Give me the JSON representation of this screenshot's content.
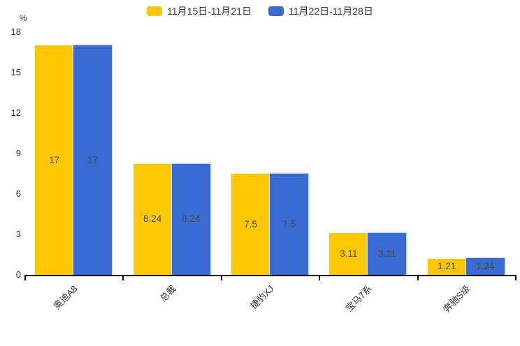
{
  "legend": {
    "items": [
      {
        "label": "11月15日-11月21日"
      },
      {
        "label": "11月22日-11月28日"
      }
    ]
  },
  "y_axis": {
    "unit": "%",
    "ticks": [
      "0",
      "3",
      "6",
      "9",
      "12",
      "15",
      "18"
    ]
  },
  "chart_data": {
    "type": "bar",
    "title": "",
    "categories": [
      "奥迪A8",
      "总裁",
      "捷豹XJ",
      "宝马7系",
      "奔驰S级"
    ],
    "series": [
      {
        "name": "11月15日-11月21日",
        "color": "#fcc802",
        "values": [
          17,
          8.24,
          7.5,
          3.11,
          1.21
        ],
        "labels": [
          "17",
          "8.24",
          "7.5",
          "3.11",
          "1.21"
        ]
      },
      {
        "name": "11月22日-11月28日",
        "color": "#3a6bd2",
        "values": [
          17,
          8.24,
          7.5,
          3.11,
          1.24
        ],
        "labels": [
          "17",
          "8.24",
          "7.5",
          "3.11",
          "1.24"
        ]
      }
    ],
    "xlabel": "",
    "ylabel": "%",
    "ylim": [
      0,
      18
    ],
    "y_tick_values": [
      0,
      3,
      6,
      9,
      12,
      15,
      18
    ],
    "grid": false,
    "legend_position": "top",
    "value_labels": "inside-center",
    "x_label_rotation_deg": -45
  },
  "style": {
    "axis_line_color": "#000000",
    "tick_text_color": "#333333",
    "value_text_color": "#4a4a4a",
    "series2_border_color": "#ccdaf6",
    "background": "#ffffff"
  }
}
